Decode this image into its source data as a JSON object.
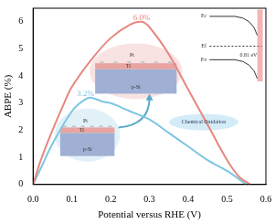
{
  "chart_data": {
    "type": "line",
    "x_label": "Potential versus RHE (V)",
    "y_label": "ABPE (%)",
    "xlim": [
      0,
      0.6
    ],
    "ylim": [
      0,
      6.5
    ],
    "xticks": [
      {
        "value": 0,
        "label": "0.0"
      },
      0.1,
      0.2,
      0.3,
      0.4,
      0.5,
      0.6
    ],
    "yticks": [
      0,
      1,
      2,
      3,
      4,
      5,
      6
    ],
    "grid": false,
    "series": [
      {
        "color": "#e8877f",
        "x": [
          0,
          0.02,
          0.05,
          0.08,
          0.1,
          0.15,
          0.2,
          0.25,
          0.28,
          0.3,
          0.35,
          0.4,
          0.45,
          0.5,
          0.53,
          0.56
        ],
        "values": [
          0,
          0.9,
          2.0,
          3.0,
          3.6,
          4.6,
          5.4,
          5.9,
          6.0,
          5.8,
          4.8,
          3.5,
          2.2,
          0.9,
          0.3,
          0
        ]
      },
      {
        "color": "#7cc6e2",
        "x": [
          0,
          0.02,
          0.05,
          0.1,
          0.13,
          0.15,
          0.18,
          0.2,
          0.25,
          0.3,
          0.35,
          0.4,
          0.45,
          0.5,
          0.55
        ],
        "values": [
          0,
          0.6,
          1.5,
          2.7,
          3.1,
          3.2,
          3.05,
          3.0,
          2.7,
          2.4,
          1.9,
          1.4,
          0.9,
          0.5,
          0
        ]
      }
    ],
    "annotations": [
      {
        "text": "6.0%",
        "x": 0.28,
        "y": 6.15,
        "color": "#e8877f"
      },
      {
        "text": "3.2%",
        "x": 0.135,
        "y": 3.35,
        "color": "#7cc6e2"
      },
      {
        "text": "Chemical Oxidation",
        "x": 0.44,
        "y": 2.3,
        "color": "#2a3a5a"
      },
      {
        "text": "Pt",
        "x": 0.255,
        "y": 4.75,
        "color": "#333333"
      },
      {
        "text": "Ti",
        "x": 0.245,
        "y": 4.35,
        "color": "#333333"
      },
      {
        "text": "p-Si",
        "x": 0.265,
        "y": 3.6,
        "color": "#333333"
      },
      {
        "text": "Pt",
        "x": 0.135,
        "y": 2.35,
        "color": "#333333"
      },
      {
        "text": "Ti",
        "x": 0.125,
        "y": 2.0,
        "color": "#333333"
      },
      {
        "text": "p-Si",
        "x": 0.14,
        "y": 1.3,
        "color": "#333333"
      },
      {
        "text": "Ec",
        "x": 0.44,
        "y": 6.2,
        "color": "#333333"
      },
      {
        "text": "Ef",
        "x": 0.44,
        "y": 5.1,
        "color": "#333333"
      },
      {
        "text": "Ev",
        "x": 0.44,
        "y": 4.6,
        "color": "#333333"
      },
      {
        "text": "0.81 eV",
        "x": 0.555,
        "y": 4.75,
        "color": "#333333"
      }
    ]
  }
}
